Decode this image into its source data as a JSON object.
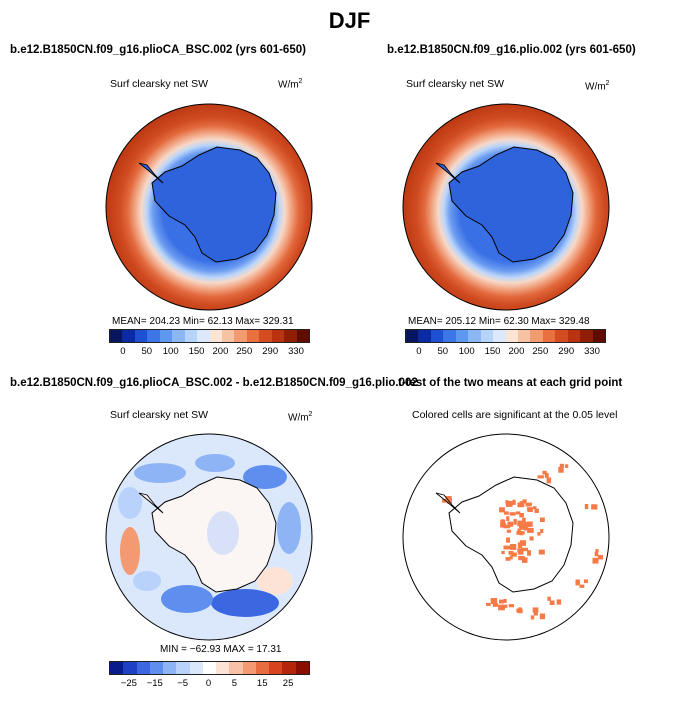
{
  "figure": {
    "title": "DJF"
  },
  "panels": {
    "p1": {
      "title": "b.e12.B1850CN.f09_g16.plioCA_BSC.002 (yrs 601-650)",
      "subtitle": "Surf clearsky net SW",
      "units_base": "W/m",
      "units_exp": "2",
      "stats": "MEAN= 204.23   Min=   62.13   Max= 329.31",
      "colorbar": {
        "labels": [
          "0",
          "50",
          "100",
          "150",
          "200",
          "250",
          "290",
          "330"
        ],
        "colors": [
          "#08155f",
          "#0c2aa6",
          "#1f50d1",
          "#3b75e6",
          "#5f98f0",
          "#8bb8f5",
          "#b6d3fa",
          "#dce9fb",
          "#fbe4d6",
          "#f7c2a4",
          "#f39a70",
          "#e8703f",
          "#d44d22",
          "#b9330f",
          "#8f1e05",
          "#5e0d00"
        ]
      }
    },
    "p2": {
      "title": "b.e12.B1850CN.f09_g16.plio.002 (yrs 601-650)",
      "subtitle": "Surf clearsky net SW",
      "units_base": "W/m",
      "units_exp": "2",
      "stats": "MEAN= 205.12   Min=   62.30   Max= 329.48",
      "colorbar": {
        "labels": [
          "0",
          "50",
          "100",
          "150",
          "200",
          "250",
          "290",
          "330"
        ]
      }
    },
    "p3": {
      "title": "b.e12.B1850CN.f09_g16.plioCA_BSC.002 - b.e12.B1850CN.f09_g16.plio.002",
      "subtitle": "Surf clearsky net SW",
      "units_base": "W/m",
      "units_exp": "2",
      "stats": "MIN = −62.93  MAX =  17.31",
      "colorbar": {
        "labels": [
          "−25",
          "−15",
          "−5",
          "0",
          "5",
          "15",
          "25"
        ],
        "colors": [
          "#0a1b8a",
          "#1f3fc4",
          "#3b68e0",
          "#5f8fee",
          "#8fb4f6",
          "#b8d2fb",
          "#dbe8fc",
          "#ffffff",
          "#fde3d6",
          "#f9c1a5",
          "#f39a73",
          "#e96c40",
          "#d64420",
          "#b5250c",
          "#8a0f02"
        ]
      }
    },
    "p4": {
      "title": "t-test of the two means at each grid point",
      "subtitle": "Colored cells are significant at the 0.05 level",
      "sig_color": "#f57a45"
    }
  }
}
